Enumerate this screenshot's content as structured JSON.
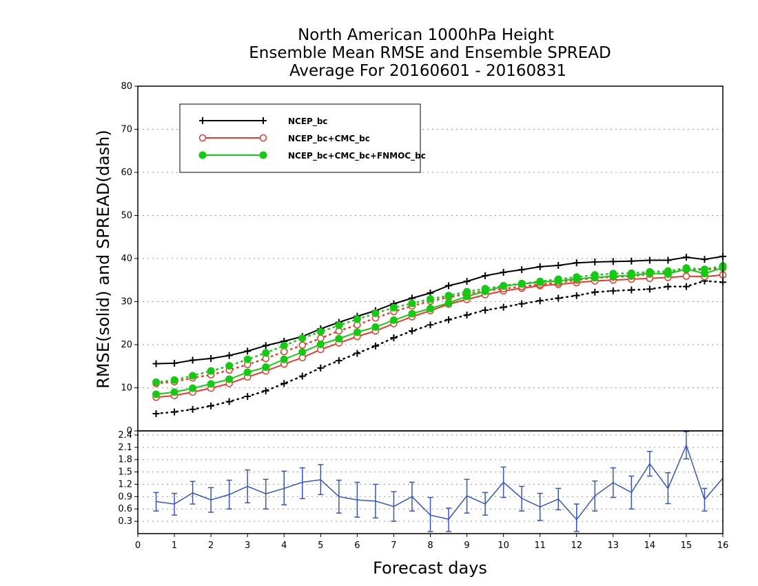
{
  "colors": {
    "ncep": "#000000",
    "ncep_cmc": "#e8392b",
    "ncep_cmc_fnmoc": "#12cc12",
    "diff": "#3355cc",
    "grid": "#999999"
  },
  "chart_data": [
    {
      "type": "line",
      "title": [
        "North American 1000hPa Height",
        "Ensemble Mean RMSE and Ensemble SPREAD",
        "Average For 20160601 - 20160831"
      ],
      "ylabel": "RMSE(solid) and SPREAD(dash)",
      "ylim": [
        0,
        80
      ],
      "yticks": [
        "0",
        "10",
        "20",
        "30",
        "40",
        "50",
        "60",
        "70",
        "80"
      ],
      "xlim": [
        0,
        16
      ],
      "grid": "horizontal dotted",
      "legend_position": "top-left",
      "x": [
        0.5,
        1,
        1.5,
        2,
        2.5,
        3,
        3.5,
        4,
        4.5,
        5,
        5.5,
        6,
        6.5,
        7,
        7.5,
        8,
        8.5,
        9,
        9.5,
        10,
        10.5,
        11,
        11.5,
        12,
        12.5,
        13,
        13.5,
        14,
        14.5,
        15,
        15.5,
        16
      ],
      "series": [
        {
          "name": "NCEP_bc",
          "kind": "rmse",
          "style": "solid",
          "marker": "plus",
          "color_key": "ncep",
          "values": [
            15.6,
            15.7,
            16.4,
            16.8,
            17.5,
            18.5,
            19.8,
            20.8,
            21.9,
            23.7,
            25.2,
            26.6,
            27.9,
            29.5,
            30.8,
            32.0,
            33.7,
            34.7,
            36.0,
            36.8,
            37.4,
            38.1,
            38.4,
            39.0,
            39.2,
            39.3,
            39.4,
            39.6,
            39.6,
            40.3,
            39.8,
            40.5
          ]
        },
        {
          "name": "",
          "kind": "spread",
          "style": "dotted",
          "marker": "plus",
          "color_key": "ncep",
          "values": [
            4.0,
            4.4,
            5.0,
            5.8,
            6.8,
            8.0,
            9.3,
            11.0,
            12.7,
            14.6,
            16.3,
            18.0,
            19.7,
            21.6,
            23.2,
            24.6,
            25.8,
            26.9,
            28.0,
            28.7,
            29.5,
            30.2,
            30.8,
            31.4,
            32.2,
            32.5,
            32.7,
            32.9,
            33.5,
            33.5,
            34.8,
            34.5
          ]
        },
        {
          "name": "NCEP_bc+CMC_bc",
          "kind": "rmse",
          "style": "solid",
          "marker": "open-circle",
          "color_key": "ncep_cmc",
          "values": [
            7.8,
            8.2,
            9.0,
            9.9,
            11.0,
            12.5,
            13.9,
            15.5,
            17.0,
            18.9,
            20.4,
            21.9,
            23.2,
            24.9,
            26.5,
            27.9,
            29.4,
            30.5,
            31.6,
            32.5,
            33.1,
            33.7,
            34.0,
            34.4,
            34.8,
            35.0,
            35.2,
            35.4,
            35.6,
            35.9,
            35.8,
            36.2
          ]
        },
        {
          "name": "",
          "kind": "spread",
          "style": "dotted",
          "marker": "open-circle",
          "color_key": "ncep_cmc",
          "values": [
            11.0,
            11.4,
            12.3,
            13.0,
            14.1,
            15.4,
            16.8,
            18.4,
            19.9,
            21.5,
            23.2,
            24.6,
            26.2,
            27.7,
            29.0,
            30.1,
            31.0,
            31.8,
            32.5,
            33.0,
            33.5,
            34.0,
            34.4,
            35.0,
            35.5,
            35.7,
            35.9,
            36.4,
            36.7,
            37.4,
            37.4,
            37.8
          ]
        },
        {
          "name": "NCEP_bc+CMC_bc+FNMOC_bc",
          "kind": "rmse",
          "style": "solid",
          "marker": "filled-circle",
          "color_key": "ncep_cmc_fnmoc",
          "values": [
            8.5,
            9.0,
            9.9,
            10.9,
            12.0,
            13.6,
            14.8,
            16.6,
            18.3,
            20.1,
            21.4,
            22.9,
            24.1,
            25.7,
            27.2,
            28.4,
            29.7,
            31.2,
            32.4,
            33.6,
            34.1,
            34.5,
            34.8,
            35.3,
            35.6,
            35.9,
            36.1,
            36.6,
            36.4,
            37.6,
            36.5,
            37.9
          ]
        },
        {
          "name": "",
          "kind": "spread",
          "style": "dotted",
          "marker": "filled-circle",
          "color_key": "ncep_cmc_fnmoc",
          "values": [
            11.3,
            11.8,
            12.8,
            13.9,
            15.1,
            16.6,
            18.1,
            19.8,
            21.5,
            23.0,
            24.5,
            25.9,
            27.3,
            28.6,
            29.6,
            30.6,
            31.4,
            32.3,
            33.0,
            33.7,
            34.2,
            34.7,
            35.2,
            35.7,
            36.2,
            36.5,
            36.6,
            36.9,
            37.1,
            37.8,
            37.5,
            38.3
          ]
        }
      ]
    },
    {
      "type": "line",
      "series_name": "",
      "ylim": [
        0,
        2.5
      ],
      "yticks": [
        "0.3",
        "0.6",
        "0.9",
        "1.2",
        "1.5",
        "1.8",
        "2.1",
        "2.4"
      ],
      "xlabel": "Forecast days",
      "xticks": [
        "0",
        "1",
        "2",
        "3",
        "4",
        "5",
        "6",
        "7",
        "8",
        "9",
        "10",
        "11",
        "12",
        "13",
        "14",
        "15",
        "16"
      ],
      "xlim": [
        0,
        16
      ],
      "grid": "horizontal dotted",
      "error_bars": true,
      "x": [
        0.5,
        1,
        1.5,
        2,
        2.5,
        3,
        3.5,
        4,
        4.5,
        5,
        5.5,
        6,
        6.5,
        7,
        7.5,
        8,
        8.5,
        9,
        9.5,
        10,
        10.5,
        11,
        11.5,
        12,
        12.5,
        13,
        13.5,
        14,
        14.5,
        15,
        15.5,
        16
      ],
      "values": [
        0.78,
        0.72,
        0.99,
        0.82,
        0.95,
        1.15,
        0.97,
        1.1,
        1.25,
        1.31,
        0.9,
        0.82,
        0.79,
        0.66,
        0.9,
        0.45,
        0.35,
        0.92,
        0.72,
        1.25,
        0.86,
        0.65,
        0.84,
        0.34,
        0.92,
        1.24,
        1.0,
        1.7,
        1.1,
        2.15,
        0.83,
        1.35
      ],
      "lower": [
        0.55,
        0.45,
        0.72,
        0.52,
        0.6,
        0.75,
        0.6,
        0.7,
        0.85,
        0.95,
        0.5,
        0.4,
        0.38,
        0.3,
        0.55,
        0.05,
        0.05,
        0.5,
        0.45,
        0.88,
        0.55,
        0.32,
        0.58,
        0.05,
        0.55,
        0.88,
        0.6,
        1.4,
        0.73,
        1.82,
        0.55,
        0.95
      ],
      "upper": [
        1.0,
        0.98,
        1.27,
        1.12,
        1.3,
        1.55,
        1.32,
        1.52,
        1.6,
        1.68,
        1.3,
        1.25,
        1.2,
        1.02,
        1.25,
        0.88,
        0.62,
        1.32,
        1.0,
        1.62,
        1.15,
        0.98,
        1.1,
        0.72,
        1.28,
        1.6,
        1.4,
        2.0,
        1.48,
        2.48,
        1.1,
        1.75
      ]
    }
  ]
}
